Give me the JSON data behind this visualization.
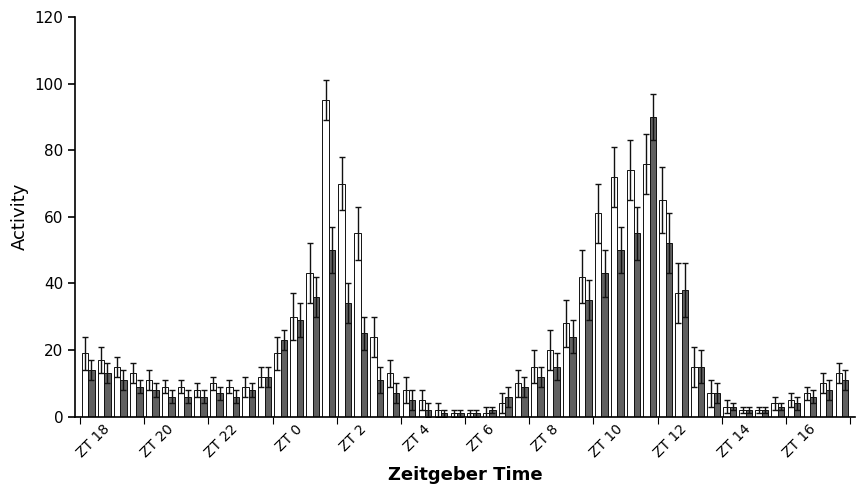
{
  "title": "",
  "xlabel": "Zeitgeber Time",
  "ylabel": "Activity",
  "ylim": [
    0,
    120
  ],
  "yticks": [
    0,
    20,
    40,
    60,
    80,
    100,
    120
  ],
  "background_color": "#ffffff",
  "bar_color_white": "#ffffff",
  "bar_color_dark": "#606060",
  "bar_edge_color": "#111111",
  "error_color": "#111111",
  "xt_labels": [
    "ZT 18",
    "ZT 20",
    "ZT 22",
    "ZT 0",
    "ZT 2",
    "ZT 4",
    "ZT 6",
    "ZT 8",
    "ZT 10",
    "ZT 12",
    "ZT 14",
    "ZT 16"
  ],
  "n_bins_per_zt": 4,
  "white_values": [
    19,
    17,
    15,
    13,
    11,
    9,
    9,
    8,
    10,
    9,
    9,
    12,
    19,
    30,
    43,
    95,
    70,
    55,
    24,
    13,
    8,
    5,
    2,
    1,
    1,
    1,
    4,
    10,
    15,
    20,
    28,
    42,
    61,
    72,
    74,
    76,
    65,
    37,
    15,
    7,
    3,
    2,
    2,
    4,
    5,
    7,
    10,
    13
  ],
  "dark_values": [
    14,
    13,
    11,
    9,
    8,
    6,
    6,
    6,
    7,
    6,
    8,
    12,
    23,
    29,
    36,
    50,
    34,
    25,
    11,
    7,
    5,
    2,
    1,
    1,
    1,
    2,
    6,
    9,
    12,
    15,
    24,
    35,
    43,
    50,
    55,
    90,
    52,
    38,
    15,
    7,
    3,
    2,
    2,
    3,
    4,
    6,
    8,
    11
  ],
  "white_errors": [
    5,
    4,
    3,
    3,
    3,
    2,
    2,
    2,
    2,
    2,
    3,
    3,
    5,
    7,
    9,
    6,
    8,
    8,
    6,
    4,
    4,
    3,
    2,
    1,
    1,
    2,
    3,
    4,
    5,
    6,
    7,
    8,
    9,
    9,
    9,
    9,
    10,
    9,
    6,
    4,
    2,
    1,
    1,
    2,
    2,
    2,
    3,
    3
  ],
  "dark_errors": [
    3,
    3,
    3,
    2,
    2,
    2,
    2,
    2,
    2,
    2,
    2,
    3,
    3,
    5,
    6,
    7,
    6,
    5,
    4,
    3,
    3,
    2,
    1,
    1,
    1,
    1,
    3,
    3,
    3,
    4,
    5,
    6,
    7,
    7,
    8,
    7,
    9,
    8,
    5,
    3,
    1,
    1,
    1,
    1,
    2,
    2,
    3,
    3
  ]
}
